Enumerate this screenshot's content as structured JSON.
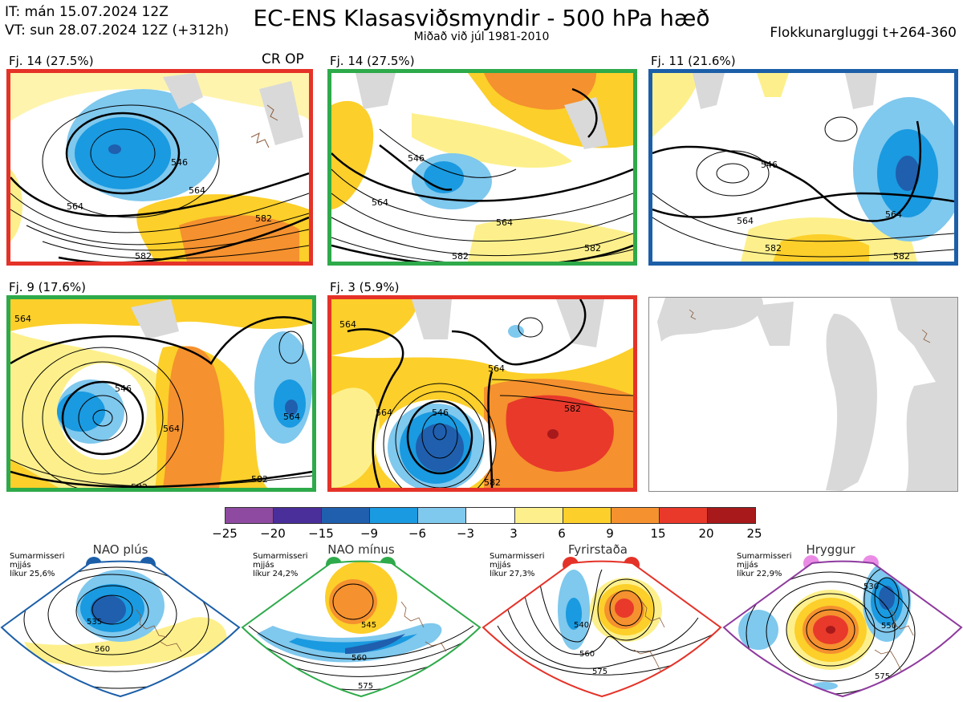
{
  "header": {
    "init_line": "IT: mán 15.07.2024 12Z",
    "valid_line": "VT: sun 28.07.2024 12Z  (+312h)",
    "title": "EC-ENS Klasasviðsmyndir - 500 hPa hæð",
    "subtitle": "Miðað við júl 1981-2010",
    "window": "Flokkunargluggi t+264-360"
  },
  "panels": [
    {
      "label": "Fj. 14 (27.5%)",
      "border": "#e53228",
      "extra": "CR OP",
      "contours": [
        "546",
        "564",
        "564",
        "582",
        "582"
      ]
    },
    {
      "label": "Fj. 14 (27.5%)",
      "border": "#2eaa4a",
      "contours": [
        "546",
        "564",
        "564",
        "582",
        "582"
      ]
    },
    {
      "label": "Fj. 11 (21.6%)",
      "border": "#1c5fa8",
      "contours": [
        "546",
        "564",
        "564",
        "582",
        "582"
      ]
    },
    {
      "label": "Fj. 9 (17.6%)",
      "border": "#2eaa4a",
      "contours": [
        "564",
        "546",
        "564",
        "564",
        "582",
        "582"
      ]
    },
    {
      "label": "Fj. 3 (5.9%)",
      "border": "#e53228",
      "contours": [
        "564",
        "564",
        "546",
        "564",
        "582",
        "582"
      ]
    }
  ],
  "colorbar": {
    "ticks": [
      "−25",
      "−20",
      "−15",
      "−9",
      "−6",
      "−3",
      "3",
      "6",
      "9",
      "15",
      "20",
      "25"
    ],
    "colors": [
      "#8e4aa1",
      "#4a2f9b",
      "#1f5fae",
      "#1a9ae0",
      "#7fc8ee",
      "#ffffff",
      "#fdf08c",
      "#fccf2a",
      "#f5912e",
      "#e8392b",
      "#a8191b"
    ]
  },
  "regimes": [
    {
      "name": "NAO plús",
      "info": [
        "Sumarmisseri",
        "mjjás",
        "líkur 25,6%"
      ],
      "color": "#1c5fa8",
      "contours": [
        "535",
        "560"
      ]
    },
    {
      "name": "NAO mínus",
      "info": [
        "Sumarmisseri",
        "mjjás",
        "líkur 24,2%"
      ],
      "color": "#2eaa4a",
      "contours": [
        "545",
        "560",
        "575"
      ]
    },
    {
      "name": "Fyrirstaða",
      "info": [
        "Sumarmisseri",
        "mjjás",
        "líkur 27,3%"
      ],
      "color": "#e53228",
      "contours": [
        "540",
        "560",
        "575"
      ]
    },
    {
      "name": "Hryggur",
      "info": [
        "Sumarmisseri",
        "mjjás",
        "líkur 22,9%"
      ],
      "color": "#8e3a9e",
      "dot_color": "#ea8ce6",
      "contours": [
        "530",
        "550",
        "575"
      ]
    }
  ]
}
